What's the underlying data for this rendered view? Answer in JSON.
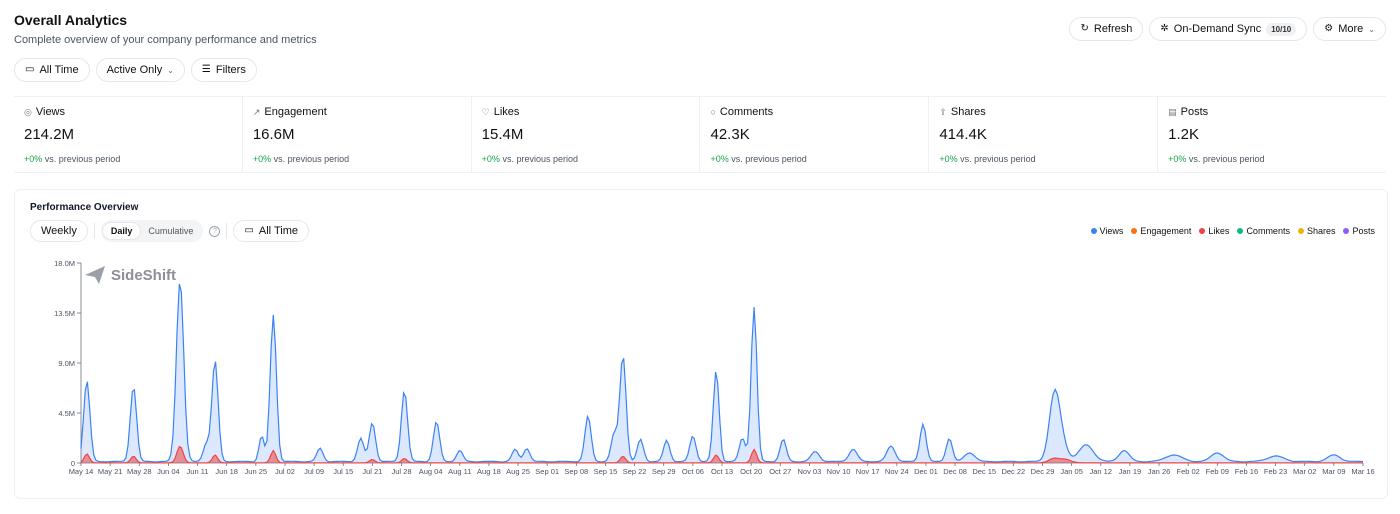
{
  "header": {
    "title": "Overall Analytics",
    "subtitle": "Complete overview of your company performance and metrics"
  },
  "actions": {
    "refresh": "Refresh",
    "sync": "On-Demand Sync",
    "sync_badge": "10/10",
    "more": "More"
  },
  "filters": {
    "time": "All Time",
    "status": "Active Only",
    "filters": "Filters"
  },
  "stats": [
    {
      "icon": "eye-icon",
      "label": "Views",
      "value": "214.2",
      "suffix": "M",
      "change": "+0%",
      "change_text": "vs. previous period"
    },
    {
      "icon": "trend-icon",
      "label": "Engagement",
      "value": "16.6",
      "suffix": "M",
      "change": "+0%",
      "change_text": "vs. previous period"
    },
    {
      "icon": "thumbs-up-icon",
      "label": "Likes",
      "value": "15.4",
      "suffix": "M",
      "change": "+0%",
      "change_text": "vs. previous period"
    },
    {
      "icon": "comment-icon",
      "label": "Comments",
      "value": "42.3",
      "suffix": "K",
      "change": "+0%",
      "change_text": "vs. previous period"
    },
    {
      "icon": "share-icon",
      "label": "Shares",
      "value": "414.4",
      "suffix": "K",
      "change": "+0%",
      "change_text": "vs. previous period"
    },
    {
      "icon": "document-icon",
      "label": "Posts",
      "value": "1.2",
      "suffix": "K",
      "change": "+0%",
      "change_text": "vs. previous period"
    }
  ],
  "panel": {
    "title": "Performance Overview",
    "weekly": "Weekly",
    "daily": "Daily",
    "cumulative": "Cumulative",
    "time": "All Time",
    "watermark": "SideShift"
  },
  "colors": {
    "views": "#3b82f6",
    "engagement": "#f97316",
    "likes": "#ef4444",
    "comments": "#10b981",
    "shares": "#eab308",
    "posts": "#8b5cf6"
  },
  "chart_data": {
    "type": "area",
    "ylim": [
      0,
      18000000
    ],
    "yticks": [
      {
        "value": 0,
        "label": "0"
      },
      {
        "value": 4500000,
        "label": "4.5M"
      },
      {
        "value": 9000000,
        "label": "9.0M"
      },
      {
        "value": 13500000,
        "label": "13.5M"
      },
      {
        "value": 18000000,
        "label": "18.0M"
      }
    ],
    "xticks": [
      "May 14",
      "May 21",
      "May 28",
      "Jun 04",
      "Jun 11",
      "Jun 18",
      "Jun 25",
      "Jul 02",
      "Jul 09",
      "Jul 15",
      "Jul 21",
      "Jul 28",
      "Aug 04",
      "Aug 11",
      "Aug 18",
      "Aug 25",
      "Sep 01",
      "Sep 08",
      "Sep 15",
      "Sep 22",
      "Sep 29",
      "Oct 06",
      "Oct 13",
      "Oct 20",
      "Oct 27",
      "Nov 03",
      "Nov 10",
      "Nov 17",
      "Nov 24",
      "Dec 01",
      "Dec 08",
      "Dec 15",
      "Dec 22",
      "Dec 29",
      "Jan 05",
      "Jan 12",
      "Jan 19",
      "Jan 26",
      "Feb 02",
      "Feb 09",
      "Feb 16",
      "Feb 23",
      "Mar 02",
      "Mar 09",
      "Mar 16"
    ],
    "legend": [
      "Views",
      "Engagement",
      "Likes",
      "Comments",
      "Shares",
      "Posts"
    ],
    "series": [
      {
        "name": "Views",
        "peaks": [
          [
            0.2,
            7.3,
            0.3
          ],
          [
            1.8,
            6.8,
            0.3
          ],
          [
            3.4,
            16.4,
            0.35
          ],
          [
            4.6,
            9.1,
            0.3
          ],
          [
            4.3,
            1.6,
            0.3
          ],
          [
            6.2,
            2.3,
            0.25
          ],
          [
            6.6,
            13.2,
            0.3
          ],
          [
            8.2,
            1.2,
            0.3
          ],
          [
            9.6,
            2.1,
            0.3
          ],
          [
            10.0,
            3.5,
            0.3
          ],
          [
            11.1,
            6.4,
            0.3
          ],
          [
            12.2,
            3.6,
            0.3
          ],
          [
            13.0,
            1.0,
            0.3
          ],
          [
            14.9,
            1.1,
            0.3
          ],
          [
            15.3,
            1.2,
            0.3
          ],
          [
            17.4,
            4.1,
            0.3
          ],
          [
            18.3,
            2.5,
            0.3
          ],
          [
            18.6,
            9.6,
            0.3
          ],
          [
            19.2,
            2.0,
            0.3
          ],
          [
            20.1,
            1.9,
            0.3
          ],
          [
            21.0,
            2.3,
            0.3
          ],
          [
            21.8,
            8.2,
            0.28
          ],
          [
            22.7,
            2.1,
            0.3
          ],
          [
            23.1,
            13.9,
            0.28
          ],
          [
            24.1,
            2.0,
            0.3
          ],
          [
            25.2,
            0.9,
            0.4
          ],
          [
            26.5,
            1.1,
            0.4
          ],
          [
            27.8,
            1.4,
            0.4
          ],
          [
            28.9,
            3.4,
            0.3
          ],
          [
            29.8,
            2.1,
            0.3
          ],
          [
            30.5,
            0.8,
            0.5
          ],
          [
            33.4,
            5.1,
            0.5
          ],
          [
            33.6,
            2.0,
            0.6
          ],
          [
            34.5,
            1.5,
            0.7
          ],
          [
            35.8,
            1.0,
            0.5
          ],
          [
            37.5,
            0.6,
            0.8
          ],
          [
            39.0,
            0.8,
            0.6
          ],
          [
            41.0,
            0.5,
            0.8
          ],
          [
            43.0,
            0.6,
            0.6
          ]
        ],
        "baseline": 0.15
      },
      {
        "name": "Likes",
        "peaks": [
          [
            0.2,
            0.8,
            0.25
          ],
          [
            1.8,
            0.6,
            0.25
          ],
          [
            3.4,
            1.5,
            0.3
          ],
          [
            4.6,
            0.7,
            0.25
          ],
          [
            6.6,
            1.1,
            0.25
          ],
          [
            10.0,
            0.3,
            0.25
          ],
          [
            11.1,
            0.4,
            0.25
          ],
          [
            18.6,
            0.6,
            0.25
          ],
          [
            21.8,
            0.7,
            0.25
          ],
          [
            23.1,
            1.2,
            0.25
          ],
          [
            33.4,
            0.4,
            0.5
          ],
          [
            33.8,
            0.3,
            0.5
          ]
        ],
        "baseline": 0.02
      }
    ]
  }
}
